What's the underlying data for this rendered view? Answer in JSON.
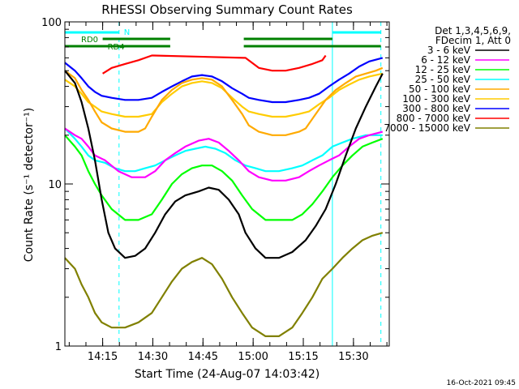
{
  "chart_data": {
    "type": "line",
    "title": "RHESSI Observing Summary Count Rates",
    "xlabel": "Start Time (24-Aug-07 14:03:42)",
    "ylabel": "Count Rate (s⁻¹ detector⁻¹)",
    "ylog": true,
    "ylim": [
      1,
      100
    ],
    "yticks": [
      "1",
      "10",
      "100"
    ],
    "xlim_min": [
      0,
      97
    ],
    "xticks": [
      {
        "label": "14:15",
        "min": 11.3
      },
      {
        "label": "14:30",
        "min": 26.3
      },
      {
        "label": "14:45",
        "min": 41.3
      },
      {
        "label": "15:00",
        "min": 56.3
      },
      {
        "label": "15:15",
        "min": 71.3
      },
      {
        "label": "15:30",
        "min": 86.3
      }
    ],
    "legend": {
      "header": [
        "Det 1,3,4,5,6,9,",
        "FDecim 1, Att 0"
      ],
      "placement": "right"
    },
    "series": [
      {
        "name": "3 - 6 keV",
        "color": "#000000",
        "values": [
          [
            0,
            50
          ],
          [
            3,
            42
          ],
          [
            5,
            32
          ],
          [
            7,
            22
          ],
          [
            9,
            14
          ],
          [
            11,
            8
          ],
          [
            13,
            5
          ],
          [
            15,
            4
          ],
          [
            18,
            3.5
          ],
          [
            21,
            3.6
          ],
          [
            24,
            4
          ],
          [
            27,
            5
          ],
          [
            30,
            6.5
          ],
          [
            33,
            7.8
          ],
          [
            36,
            8.5
          ],
          [
            40,
            9
          ],
          [
            43,
            9.5
          ],
          [
            46,
            9.2
          ],
          [
            49,
            8
          ],
          [
            52,
            6.5
          ],
          [
            54,
            5
          ],
          [
            57,
            4
          ],
          [
            60,
            3.5
          ],
          [
            64,
            3.5
          ],
          [
            68,
            3.8
          ],
          [
            72,
            4.5
          ],
          [
            75,
            5.5
          ],
          [
            78,
            7
          ],
          [
            81,
            10
          ],
          [
            84,
            15
          ],
          [
            87,
            22
          ],
          [
            90,
            30
          ],
          [
            93,
            40
          ],
          [
            95,
            48
          ]
        ]
      },
      {
        "name": "6 - 12 keV",
        "color": "#ff00ff",
        "values": [
          [
            0,
            22
          ],
          [
            3,
            20
          ],
          [
            5,
            19
          ],
          [
            7,
            17
          ],
          [
            9,
            15
          ],
          [
            12,
            14
          ],
          [
            16,
            12
          ],
          [
            20,
            11
          ],
          [
            24,
            11
          ],
          [
            27,
            12
          ],
          [
            30,
            14
          ],
          [
            33,
            15.5
          ],
          [
            36,
            17
          ],
          [
            40,
            18.5
          ],
          [
            43,
            19
          ],
          [
            46,
            18
          ],
          [
            49,
            16
          ],
          [
            52,
            14
          ],
          [
            55,
            12
          ],
          [
            58,
            11
          ],
          [
            62,
            10.5
          ],
          [
            66,
            10.5
          ],
          [
            70,
            11
          ],
          [
            73,
            12
          ],
          [
            76,
            13
          ],
          [
            79,
            14
          ],
          [
            82,
            15
          ],
          [
            85,
            17
          ],
          [
            88,
            19
          ],
          [
            91,
            20
          ],
          [
            95,
            21
          ]
        ]
      },
      {
        "name": "12 - 25 keV",
        "color": "#00ff00",
        "values": [
          [
            0,
            20
          ],
          [
            3,
            17
          ],
          [
            5,
            15
          ],
          [
            7,
            12
          ],
          [
            9,
            10
          ],
          [
            11,
            8.5
          ],
          [
            14,
            7
          ],
          [
            18,
            6
          ],
          [
            22,
            6
          ],
          [
            26,
            6.5
          ],
          [
            29,
            8
          ],
          [
            32,
            10
          ],
          [
            35,
            11.5
          ],
          [
            38,
            12.5
          ],
          [
            41,
            13
          ],
          [
            44,
            13
          ],
          [
            47,
            12
          ],
          [
            50,
            10.5
          ],
          [
            53,
            8.5
          ],
          [
            56,
            7
          ],
          [
            60,
            6
          ],
          [
            64,
            6
          ],
          [
            68,
            6
          ],
          [
            71,
            6.5
          ],
          [
            74,
            7.5
          ],
          [
            77,
            9
          ],
          [
            80,
            11
          ],
          [
            83,
            13
          ],
          [
            86,
            15
          ],
          [
            89,
            17
          ],
          [
            92,
            18
          ],
          [
            95,
            19
          ]
        ]
      },
      {
        "name": "25 - 50 keV",
        "color": "#00ffff",
        "values": [
          [
            0,
            22
          ],
          [
            3,
            19
          ],
          [
            5,
            17
          ],
          [
            7,
            15
          ],
          [
            9,
            14
          ],
          [
            12,
            13.5
          ],
          [
            15,
            12.5
          ],
          [
            18,
            12
          ],
          [
            21,
            12
          ],
          [
            24,
            12.5
          ],
          [
            27,
            13
          ],
          [
            30,
            14
          ],
          [
            33,
            15
          ],
          [
            36,
            16
          ],
          [
            39,
            16.5
          ],
          [
            42,
            17
          ],
          [
            45,
            16.5
          ],
          [
            48,
            15.5
          ],
          [
            51,
            14
          ],
          [
            54,
            13
          ],
          [
            57,
            12.5
          ],
          [
            60,
            12
          ],
          [
            64,
            12
          ],
          [
            68,
            12.5
          ],
          [
            71,
            13
          ],
          [
            74,
            14
          ],
          [
            77,
            15
          ],
          [
            80,
            17
          ],
          [
            83,
            18
          ],
          [
            86,
            19
          ],
          [
            90,
            20
          ],
          [
            95,
            20
          ]
        ]
      },
      {
        "name": "50 - 100 keV",
        "color": "#ffaa00",
        "values": [
          [
            0,
            50
          ],
          [
            3,
            45
          ],
          [
            5,
            38
          ],
          [
            7,
            33
          ],
          [
            9,
            28
          ],
          [
            11,
            24
          ],
          [
            14,
            22
          ],
          [
            18,
            21
          ],
          [
            22,
            21
          ],
          [
            24,
            22
          ],
          [
            26,
            26
          ],
          [
            29,
            33
          ],
          [
            32,
            38
          ],
          [
            35,
            42
          ],
          [
            38,
            44
          ],
          [
            41,
            45
          ],
          [
            44,
            44
          ],
          [
            47,
            40
          ],
          [
            50,
            33
          ],
          [
            53,
            27
          ],
          [
            55,
            23
          ],
          [
            58,
            21
          ],
          [
            62,
            20
          ],
          [
            66,
            20
          ],
          [
            70,
            21
          ],
          [
            72,
            22
          ],
          [
            75,
            27
          ],
          [
            78,
            33
          ],
          [
            81,
            38
          ],
          [
            84,
            42
          ],
          [
            87,
            46
          ],
          [
            90,
            48
          ],
          [
            93,
            50
          ],
          [
            95,
            52
          ]
        ]
      },
      {
        "name": "100 - 300 keV",
        "color": "#ffcc00",
        "values": [
          [
            0,
            44
          ],
          [
            3,
            40
          ],
          [
            5,
            36
          ],
          [
            7,
            32
          ],
          [
            9,
            30
          ],
          [
            11,
            28
          ],
          [
            14,
            27
          ],
          [
            18,
            26
          ],
          [
            22,
            26
          ],
          [
            26,
            27
          ],
          [
            29,
            32
          ],
          [
            32,
            36
          ],
          [
            35,
            40
          ],
          [
            38,
            42
          ],
          [
            41,
            43
          ],
          [
            44,
            42
          ],
          [
            47,
            39
          ],
          [
            50,
            34
          ],
          [
            53,
            30
          ],
          [
            55,
            28
          ],
          [
            58,
            27
          ],
          [
            62,
            26
          ],
          [
            66,
            26
          ],
          [
            70,
            27
          ],
          [
            73,
            28
          ],
          [
            76,
            31
          ],
          [
            79,
            34
          ],
          [
            82,
            38
          ],
          [
            85,
            41
          ],
          [
            88,
            44
          ],
          [
            91,
            46
          ],
          [
            95,
            48
          ]
        ]
      },
      {
        "name": "300 - 800 keV",
        "color": "#0000ff",
        "values": [
          [
            0,
            56
          ],
          [
            3,
            50
          ],
          [
            5,
            45
          ],
          [
            7,
            40
          ],
          [
            9,
            37
          ],
          [
            11,
            35
          ],
          [
            14,
            34
          ],
          [
            18,
            33
          ],
          [
            22,
            33
          ],
          [
            26,
            34
          ],
          [
            29,
            37
          ],
          [
            32,
            40
          ],
          [
            35,
            43
          ],
          [
            38,
            46
          ],
          [
            41,
            47
          ],
          [
            44,
            46
          ],
          [
            47,
            43
          ],
          [
            50,
            39
          ],
          [
            53,
            36
          ],
          [
            55,
            34
          ],
          [
            58,
            33
          ],
          [
            62,
            32
          ],
          [
            66,
            32
          ],
          [
            70,
            33
          ],
          [
            73,
            34
          ],
          [
            76,
            36
          ],
          [
            79,
            40
          ],
          [
            82,
            44
          ],
          [
            85,
            48
          ],
          [
            88,
            53
          ],
          [
            91,
            57
          ],
          [
            95,
            60
          ]
        ]
      },
      {
        "name": "800 - 7000 keV",
        "color": "#ff0000",
        "values": [
          [
            11.3,
            48
          ],
          [
            14,
            52
          ],
          [
            18,
            55
          ],
          [
            22,
            58
          ],
          [
            26,
            62
          ],
          [
            26.5,
            62
          ],
          [
            53.5,
            60
          ],
          [
            54,
            60
          ],
          [
            58,
            52
          ],
          [
            62,
            50
          ],
          [
            66,
            50
          ],
          [
            70,
            52
          ],
          [
            74,
            55
          ],
          [
            77,
            58
          ],
          [
            78,
            62
          ]
        ]
      },
      {
        "name": "7000 - 15000 keV",
        "color": "#808000",
        "values": [
          [
            0,
            3.5
          ],
          [
            3,
            3
          ],
          [
            5,
            2.4
          ],
          [
            7,
            2
          ],
          [
            9,
            1.6
          ],
          [
            11,
            1.4
          ],
          [
            14,
            1.3
          ],
          [
            18,
            1.3
          ],
          [
            22,
            1.4
          ],
          [
            26,
            1.6
          ],
          [
            29,
            2
          ],
          [
            32,
            2.5
          ],
          [
            35,
            3
          ],
          [
            38,
            3.3
          ],
          [
            41,
            3.5
          ],
          [
            44,
            3.2
          ],
          [
            47,
            2.6
          ],
          [
            50,
            2
          ],
          [
            53,
            1.6
          ],
          [
            56,
            1.3
          ],
          [
            60,
            1.15
          ],
          [
            64,
            1.15
          ],
          [
            68,
            1.3
          ],
          [
            71,
            1.6
          ],
          [
            74,
            2
          ],
          [
            77,
            2.6
          ],
          [
            80,
            3
          ],
          [
            83,
            3.5
          ],
          [
            86,
            4
          ],
          [
            89,
            4.5
          ],
          [
            92,
            4.8
          ],
          [
            95,
            5
          ]
        ]
      }
    ],
    "markers": {
      "attenuator": {
        "label": "N",
        "color": "#00ffff",
        "segments": [
          [
            0,
            16.2
          ],
          [
            80,
            94.5
          ]
        ]
      },
      "rd0": {
        "label": "RD0",
        "color": "#008000",
        "segments": [
          [
            11.3,
            31.5
          ],
          [
            53.5,
            80
          ]
        ]
      },
      "rd4": {
        "label": "RD4",
        "color": "#008000",
        "segments": [
          [
            0,
            31.5
          ],
          [
            53.5,
            94.5
          ]
        ]
      }
    },
    "vlines_solid": [
      0,
      80
    ],
    "vlines_dashed": [
      16.2,
      94.5
    ],
    "timestamp": "16-Oct-2021 09:45"
  }
}
